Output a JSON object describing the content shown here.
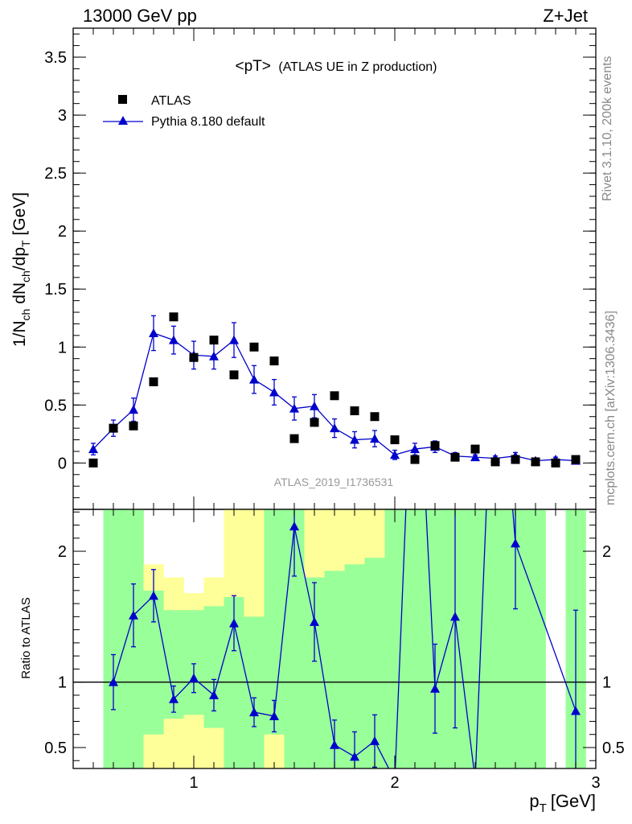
{
  "header": {
    "energy_label": "13000 GeV pp",
    "process_label": "Z+Jet"
  },
  "side_text": {
    "rivet": "Rivet 3.1.10,  200k events",
    "mcplots": "mcplots.cern.ch [arXiv:1306.3436]"
  },
  "analysis_id": "ATLAS_2019_I1736531",
  "colors": {
    "mc": "#0000cc",
    "band_inner": "#99ff99",
    "band_outer": "#ffff99",
    "data": "#000000"
  },
  "chart_data": [
    {
      "type": "scatter",
      "title": "<pT>",
      "subtitle": "(ATLAS UE in Z production)",
      "xlabel": "p",
      "xlabel_sub": "T",
      "xlabel_unit": "[GeV]",
      "ylabel": "1/N",
      "ylabel_parts": [
        "1/N",
        "ch",
        " dN",
        "ch",
        "/dp",
        "T",
        " [GeV]"
      ],
      "xlim": [
        0.4,
        3.0
      ],
      "ylim": [
        -0.4,
        3.75
      ],
      "x_ticks": [
        1,
        2,
        3
      ],
      "x_tick_labels": [
        "1",
        "2",
        "3"
      ],
      "y_ticks": [
        0,
        0.5,
        1,
        1.5,
        2,
        2.5,
        3,
        3.5
      ],
      "y_tick_labels": [
        "0",
        "0.5",
        "1",
        "1.5",
        "2",
        "2.5",
        "3",
        "3.5"
      ],
      "legend_position": "top-left",
      "series": [
        {
          "name": "ATLAS",
          "marker": "square",
          "x": [
            0.5,
            0.6,
            0.7,
            0.8,
            0.9,
            1.0,
            1.1,
            1.2,
            1.3,
            1.4,
            1.5,
            1.6,
            1.7,
            1.8,
            1.9,
            2.0,
            2.1,
            2.2,
            2.3,
            2.4,
            2.5,
            2.6,
            2.7,
            2.8,
            2.9
          ],
          "y": [
            0.0,
            0.3,
            0.32,
            0.7,
            1.26,
            0.91,
            1.06,
            0.76,
            1.0,
            0.88,
            0.21,
            0.35,
            0.58,
            0.45,
            0.4,
            0.2,
            0.03,
            0.15,
            0.05,
            0.12,
            0.01,
            0.03,
            0.01,
            0.0,
            0.03
          ]
        },
        {
          "name": "Pythia 8.180 default",
          "marker": "triangle",
          "x": [
            0.5,
            0.6,
            0.7,
            0.8,
            0.9,
            1.0,
            1.1,
            1.2,
            1.3,
            1.4,
            1.5,
            1.6,
            1.7,
            1.8,
            1.9,
            2.0,
            2.1,
            2.2,
            2.3,
            2.4,
            2.5,
            2.6,
            2.7,
            2.8,
            2.9
          ],
          "y": [
            0.12,
            0.3,
            0.46,
            1.12,
            1.06,
            0.93,
            0.92,
            1.06,
            0.72,
            0.61,
            0.47,
            0.49,
            0.3,
            0.2,
            0.21,
            0.07,
            0.12,
            0.14,
            0.06,
            0.05,
            0.04,
            0.06,
            0.02,
            0.03,
            0.02
          ],
          "yerr": [
            0.05,
            0.07,
            0.1,
            0.15,
            0.12,
            0.12,
            0.11,
            0.15,
            0.12,
            0.11,
            0.1,
            0.1,
            0.08,
            0.07,
            0.07,
            0.04,
            0.05,
            0.05,
            0.03,
            0.02,
            0.02,
            0.03,
            0.02,
            0.02,
            0.01
          ]
        }
      ]
    },
    {
      "type": "line",
      "ylabel": "Ratio to ATLAS",
      "xlim": [
        0.4,
        3.0
      ],
      "ylim": [
        0.34,
        2.32
      ],
      "x_ticks": [
        1,
        2,
        3
      ],
      "x_tick_labels": [
        "1",
        "2",
        "3"
      ],
      "y_ticks": [
        0.5,
        1,
        2
      ],
      "y_tick_labels": [
        "0.5",
        "1",
        "2"
      ],
      "reference_line": 1,
      "bands": {
        "bin_low": [
          0.55,
          0.65,
          0.75,
          0.85,
          0.95,
          1.05,
          1.15,
          1.25,
          1.35,
          1.45,
          1.55,
          1.65,
          1.75,
          1.85,
          1.95,
          2.05,
          2.15,
          2.25,
          2.35,
          2.45,
          2.55,
          2.65,
          2.85
        ],
        "bin_high": [
          0.65,
          0.75,
          0.85,
          0.95,
          1.05,
          1.15,
          1.25,
          1.35,
          1.45,
          1.55,
          1.65,
          1.75,
          1.85,
          1.95,
          2.05,
          2.15,
          2.25,
          2.35,
          2.45,
          2.55,
          2.65,
          2.75,
          2.95
        ],
        "inner_low": [
          0.34,
          0.34,
          0.6,
          0.72,
          0.75,
          0.65,
          0.34,
          0.34,
          0.6,
          0.34,
          0.34,
          0.34,
          0.34,
          0.34,
          0.34,
          0.34,
          0.34,
          0.34,
          0.34,
          0.34,
          0.34,
          0.34,
          0.34
        ],
        "inner_high": [
          2.32,
          2.32,
          1.7,
          1.55,
          1.55,
          1.58,
          1.65,
          1.5,
          2.32,
          2.32,
          1.8,
          1.85,
          1.9,
          1.95,
          2.32,
          2.32,
          2.32,
          2.32,
          2.32,
          2.32,
          2.32,
          2.32,
          2.32
        ],
        "outer_low": [
          0.34,
          0.34,
          0.34,
          0.34,
          0.34,
          0.34,
          0.34,
          0.34,
          0.34,
          0.34,
          0.34,
          0.34,
          0.34,
          0.34,
          0.34,
          0.34,
          0.34,
          0.34,
          0.34,
          0.34,
          0.34,
          0.34,
          0.34
        ],
        "outer_high": [
          2.32,
          2.32,
          1.9,
          1.8,
          1.68,
          1.8,
          2.32,
          2.32,
          2.32,
          2.32,
          2.32,
          2.32,
          2.32,
          2.32,
          2.32,
          2.32,
          2.32,
          2.32,
          2.32,
          2.32,
          2.32,
          2.32,
          2.32
        ]
      },
      "series": [
        {
          "name": "Pythia 8.180 default",
          "marker": "triangle",
          "x": [
            0.6,
            0.7,
            0.8,
            0.9,
            1.0,
            1.1,
            1.2,
            1.3,
            1.4,
            1.5,
            1.6,
            1.7,
            1.8,
            1.9,
            2.0,
            2.1,
            2.2,
            2.3,
            2.4,
            2.5,
            2.6,
            2.9
          ],
          "y": [
            1.0,
            1.51,
            1.66,
            0.87,
            1.03,
            0.9,
            1.45,
            0.77,
            0.74,
            2.19,
            1.46,
            0.52,
            0.43,
            0.55,
            0.25,
            4.0,
            0.95,
            1.5,
            0.25,
            4.0,
            2.06,
            0.78
          ],
          "yerr": [
            0.21,
            0.24,
            0.2,
            0.1,
            0.11,
            0.12,
            0.21,
            0.11,
            0.12,
            0.38,
            0.3,
            0.19,
            0.19,
            0.2,
            0.0,
            0.0,
            0.34,
            0.85,
            0.0,
            0.0,
            0.5,
            0.77
          ]
        }
      ]
    }
  ]
}
